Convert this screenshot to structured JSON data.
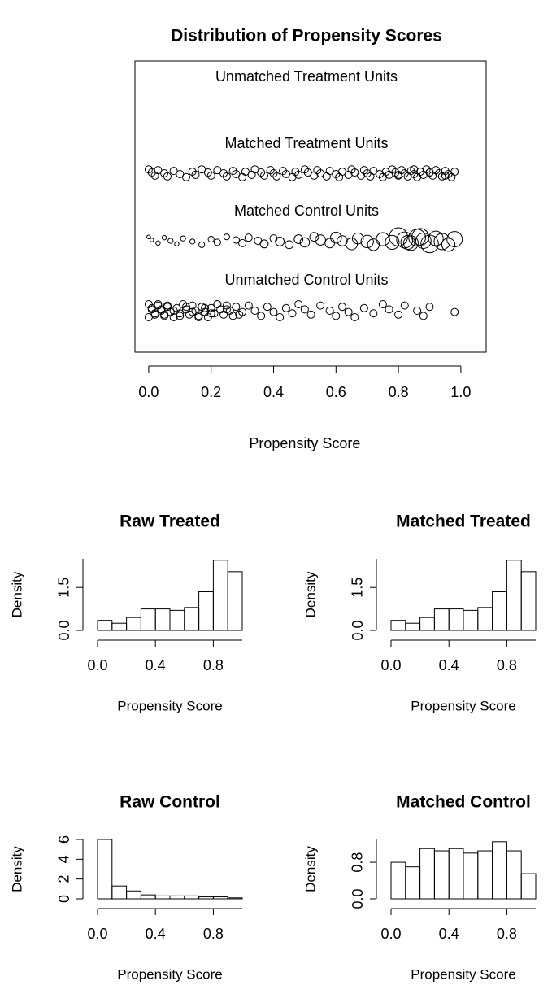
{
  "chart_data": [
    {
      "type": "jitter",
      "title": "Distribution of Propensity Scores",
      "xlabel": "Propensity Score",
      "xlim": [
        -0.044,
        1.081
      ],
      "xticks": [
        {
          "value": 0,
          "label": "0.0"
        },
        0.2,
        0.4,
        0.6,
        0.8,
        {
          "value": 1,
          "label": "1.0"
        }
      ],
      "groups": [
        {
          "name": "Unmatched Treatment Units",
          "x": []
        },
        {
          "name": "Matched Treatment Units",
          "x": [
            0.0,
            0.01,
            0.02,
            0.03,
            0.05,
            0.06,
            0.08,
            0.1,
            0.12,
            0.14,
            0.15,
            0.17,
            0.19,
            0.2,
            0.22,
            0.24,
            0.25,
            0.27,
            0.28,
            0.3,
            0.31,
            0.33,
            0.34,
            0.36,
            0.37,
            0.39,
            0.4,
            0.41,
            0.43,
            0.44,
            0.46,
            0.47,
            0.48,
            0.5,
            0.51,
            0.53,
            0.54,
            0.55,
            0.57,
            0.58,
            0.6,
            0.61,
            0.62,
            0.64,
            0.65,
            0.66,
            0.68,
            0.69,
            0.7,
            0.71,
            0.72,
            0.74,
            0.75,
            0.76,
            0.77,
            0.78,
            0.79,
            0.8,
            0.81,
            0.82,
            0.83,
            0.84,
            0.85,
            0.86,
            0.87,
            0.88,
            0.89,
            0.9,
            0.91,
            0.92,
            0.93,
            0.94,
            0.95,
            0.96,
            0.97,
            0.98,
            0.8,
            0.85,
            0.9,
            0.95
          ]
        },
        {
          "name": "Matched Control Units",
          "x": [
            0.0,
            0.01,
            0.03,
            0.05,
            0.07,
            0.09,
            0.11,
            0.14,
            0.17,
            0.2,
            0.22,
            0.25,
            0.28,
            0.3,
            0.32,
            0.35,
            0.37,
            0.4,
            0.42,
            0.45,
            0.48,
            0.5,
            0.53,
            0.55,
            0.58,
            0.6,
            0.62,
            0.65,
            0.67,
            0.7,
            0.72,
            0.75,
            0.78,
            0.8,
            0.82,
            0.84,
            0.86,
            0.88,
            0.9,
            0.92,
            0.94,
            0.96,
            0.98,
            0.83,
            0.87
          ],
          "sizes": [
            0.5,
            0.5,
            0.6,
            0.6,
            0.7,
            0.6,
            0.7,
            0.7,
            0.8,
            0.8,
            0.9,
            0.8,
            0.9,
            1,
            1,
            1,
            1.1,
            1,
            1.2,
            1.1,
            1.2,
            1.3,
            1.2,
            1.4,
            1.3,
            1.5,
            1.4,
            1.6,
            1.5,
            1.7,
            1.6,
            1.8,
            1.9,
            2.5,
            2.2,
            2,
            2.3,
            2.1,
            2.4,
            2,
            2.2,
            1.8,
            2.1,
            1.9,
            2.3
          ]
        },
        {
          "name": "Unmatched Control Units",
          "x": [
            0.0,
            0.01,
            0.02,
            0.03,
            0.04,
            0.05,
            0.06,
            0.07,
            0.08,
            0.09,
            0.1,
            0.11,
            0.12,
            0.13,
            0.14,
            0.15,
            0.16,
            0.17,
            0.18,
            0.19,
            0.2,
            0.21,
            0.22,
            0.23,
            0.24,
            0.25,
            0.26,
            0.27,
            0.28,
            0.3,
            0.0,
            0.01,
            0.02,
            0.03,
            0.04,
            0.05,
            0.06,
            0.08,
            0.1,
            0.12,
            0.14,
            0.16,
            0.18,
            0.2,
            0.22,
            0.25,
            0.29,
            0.32,
            0.34,
            0.36,
            0.38,
            0.4,
            0.42,
            0.44,
            0.46,
            0.48,
            0.5,
            0.52,
            0.55,
            0.58,
            0.6,
            0.62,
            0.64,
            0.66,
            0.69,
            0.72,
            0.75,
            0.77,
            0.8,
            0.82,
            0.86,
            0.88,
            0.9,
            0.98
          ]
        }
      ]
    },
    {
      "type": "histogram",
      "title": "Raw Treated",
      "xlabel": "Propensity Score",
      "ylabel": "Density",
      "bins": [
        0,
        0.1,
        0.2,
        0.3,
        0.4,
        0.5,
        0.6,
        0.7,
        0.8,
        0.9,
        1
      ],
      "values": [
        0.35,
        0.25,
        0.45,
        0.75,
        0.75,
        0.7,
        0.8,
        1.35,
        2.45,
        2.05
      ],
      "xlim": [
        0,
        1
      ],
      "xticks": [
        {
          "value": 0,
          "label": "0.0"
        },
        0.4,
        0.8
      ],
      "ylim": [
        0,
        2.5
      ],
      "yticks": [
        {
          "value": 0,
          "label": "0.0"
        },
        1.5
      ]
    },
    {
      "type": "histogram",
      "title": "Matched Treated",
      "xlabel": "Propensity Score",
      "ylabel": "Density",
      "bins": [
        0,
        0.1,
        0.2,
        0.3,
        0.4,
        0.5,
        0.6,
        0.7,
        0.8,
        0.9,
        1
      ],
      "values": [
        0.35,
        0.25,
        0.45,
        0.75,
        0.75,
        0.7,
        0.8,
        1.35,
        2.45,
        2.05
      ],
      "xlim": [
        0,
        1
      ],
      "xticks": [
        {
          "value": 0,
          "label": "0.0"
        },
        0.4,
        0.8
      ],
      "ylim": [
        0,
        2.5
      ],
      "yticks": [
        {
          "value": 0,
          "label": "0.0"
        },
        1.5
      ]
    },
    {
      "type": "histogram",
      "title": "Raw Control",
      "xlabel": "Propensity Score",
      "ylabel": "Density",
      "bins": [
        0,
        0.1,
        0.2,
        0.3,
        0.4,
        0.5,
        0.6,
        0.7,
        0.8,
        0.9,
        1
      ],
      "values": [
        6.0,
        1.3,
        0.8,
        0.4,
        0.3,
        0.3,
        0.3,
        0.2,
        0.2,
        0.1
      ],
      "xlim": [
        0,
        1
      ],
      "xticks": [
        {
          "value": 0,
          "label": "0.0"
        },
        0.4,
        0.8
      ],
      "ylim": [
        0,
        6
      ],
      "yticks": [
        0,
        2,
        4,
        6
      ]
    },
    {
      "type": "histogram",
      "title": "Matched Control",
      "xlabel": "Propensity Score",
      "ylabel": "Density",
      "bins": [
        0,
        0.1,
        0.2,
        0.3,
        0.4,
        0.5,
        0.6,
        0.7,
        0.8,
        0.9,
        1
      ],
      "values": [
        0.8,
        0.7,
        1.1,
        1.05,
        1.1,
        1.0,
        1.05,
        1.25,
        1.05,
        0.55
      ],
      "xlim": [
        0,
        1
      ],
      "xticks": [
        {
          "value": 0,
          "label": "0.0"
        },
        0.4,
        0.8
      ],
      "ylim": [
        0,
        1.3
      ],
      "yticks": [
        {
          "value": 0,
          "label": "0.0"
        },
        0.8
      ]
    }
  ]
}
